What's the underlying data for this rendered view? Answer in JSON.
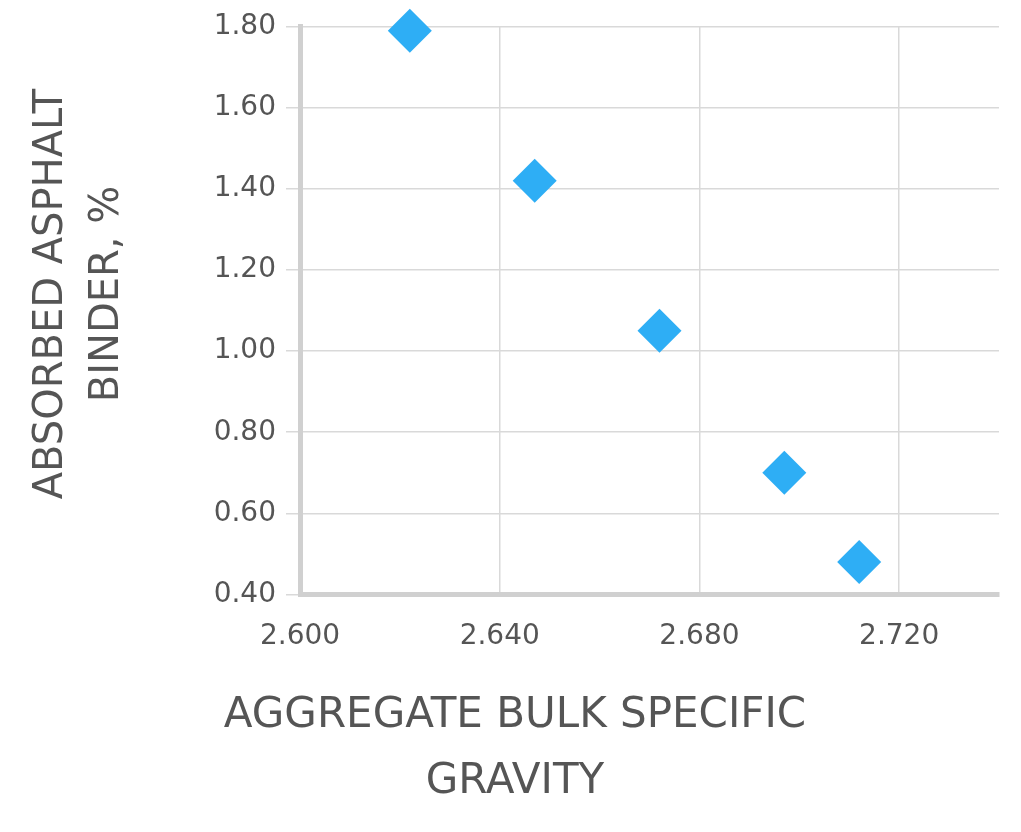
{
  "chart_data": {
    "type": "scatter",
    "xlabel": "AGGREGATE BULK SPECIFIC GRAVITY",
    "ylabel": "ABSORBED ASPHALT BINDER, %",
    "x": [
      2.622,
      2.647,
      2.672,
      2.697,
      2.712
    ],
    "series": [
      {
        "color": "#2eaef5",
        "values": [
          1.79,
          1.42,
          1.05,
          0.7,
          0.48
        ]
      }
    ],
    "xlim": [
      2.6,
      2.74
    ],
    "xticks": [
      {
        "value": 2.6,
        "label": "2.600"
      },
      {
        "value": 2.64,
        "label": "2.640"
      },
      {
        "value": 2.68,
        "label": "2.680"
      },
      {
        "value": 2.72,
        "label": "2.720"
      }
    ],
    "ylim": [
      0.4,
      1.8
    ],
    "yticks": [
      {
        "value": 0.4,
        "label": "0.40"
      },
      {
        "value": 0.6,
        "label": "0.60"
      },
      {
        "value": 0.8,
        "label": "0.80"
      },
      {
        "value": 1.0,
        "label": "1.00"
      },
      {
        "value": 1.2,
        "label": "1.20"
      },
      {
        "value": 1.4,
        "label": "1.40"
      },
      {
        "value": 1.6,
        "label": "1.60"
      },
      {
        "value": 1.8,
        "label": "1.80"
      }
    ],
    "grid": true,
    "marker": "diamond",
    "legend": false
  }
}
